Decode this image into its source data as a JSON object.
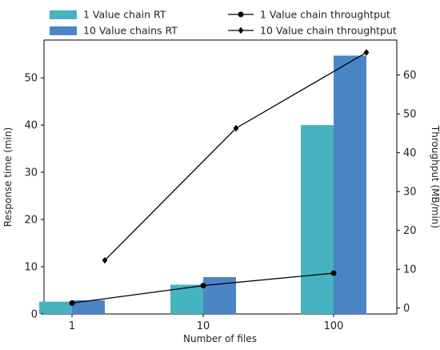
{
  "chart_data": {
    "type": "bar",
    "categories": [
      "1",
      "10",
      "100"
    ],
    "xlabel": "Number of files",
    "ylabel": "Response time (min)",
    "y2label": "Throughput (MB/min)",
    "ylim": [
      0,
      58
    ],
    "y2lim": [
      -1.5,
      69
    ],
    "yticks": [
      0,
      10,
      20,
      30,
      40,
      50
    ],
    "y2ticks": [
      0,
      10,
      20,
      30,
      40,
      50,
      60
    ],
    "grid": false,
    "legend_position": "top",
    "bar_series": [
      {
        "name": "1 Value chain RT",
        "color": "#45b3c0",
        "values": [
          2.6,
          6.2,
          40
        ]
      },
      {
        "name": "10 Value chains RT",
        "color": "#4a86c5",
        "values": [
          2.9,
          7.8,
          54.7
        ]
      }
    ],
    "line_series": [
      {
        "name": "1 Value chain throughtput",
        "marker": "circle",
        "color": "#000000",
        "values": [
          1.3,
          5.8,
          9
        ]
      },
      {
        "name": "10 Value chain throughtput",
        "marker": "diamond",
        "color": "#000000",
        "values": [
          12.3,
          46.3,
          65.8
        ]
      }
    ]
  }
}
